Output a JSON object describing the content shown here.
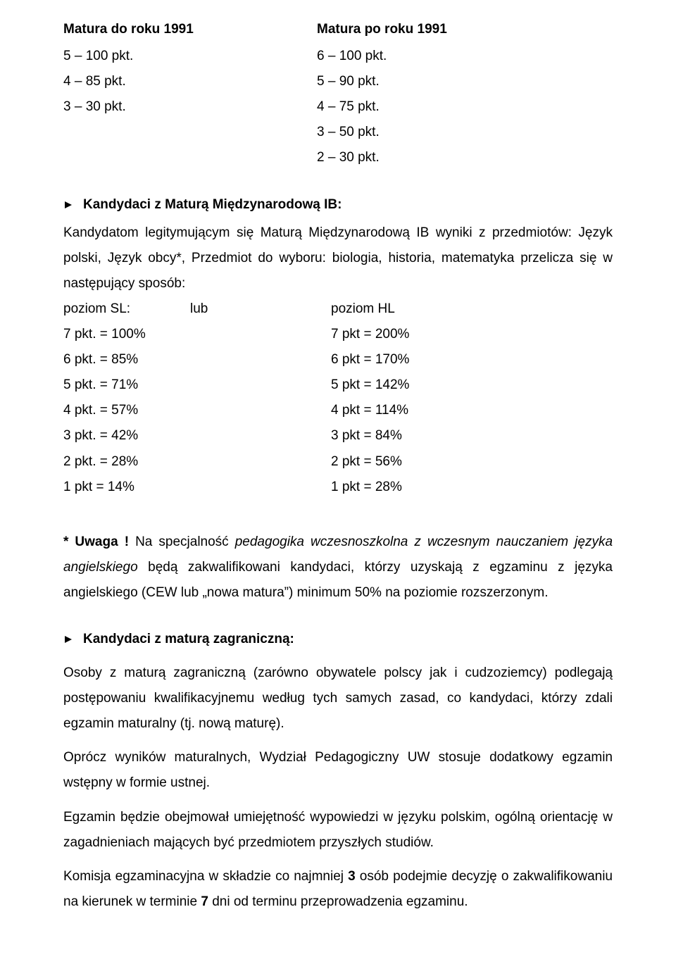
{
  "header": {
    "left_title": "Matura do roku 1991",
    "right_title": "Matura po roku 1991"
  },
  "points_table": {
    "left": [
      "5 – 100 pkt.",
      "4 – 85 pkt.",
      "3 – 30 pkt."
    ],
    "right": [
      "6 – 100 pkt.",
      "5 – 90 pkt.",
      "4 – 75 pkt.",
      "3 – 50 pkt.",
      "2 – 30 pkt."
    ]
  },
  "ib_heading": "Kandydaci z Maturą Międzynarodową IB:",
  "ib_para": "Kandydatom legitymującym się Maturą Międzynarodową IB wyniki  z przedmiotów: Język polski, Język obcy*, Przedmiot do wyboru: biologia, historia, matematyka przelicza się w następujący sposób:",
  "conv": {
    "sl_label": "poziom SL:",
    "lub_label": "lub",
    "hl_label": "poziom HL",
    "rows": [
      {
        "sl": "7 pkt. = 100%",
        "hl": "7 pkt = 200%"
      },
      {
        "sl": "6 pkt. = 85%",
        "hl": "6 pkt = 170%"
      },
      {
        "sl": "5 pkt. = 71%",
        "hl": "5 pkt = 142%"
      },
      {
        "sl": "4 pkt. = 57%",
        "hl": "4 pkt = 114%"
      },
      {
        "sl": "3 pkt. = 42%",
        "hl": "3 pkt =   84%"
      },
      {
        "sl": "2 pkt. = 28%",
        "hl": "2 pkt =   56%"
      },
      {
        "sl": "1 pkt = 14%",
        "hl": "1 pkt =   28%"
      }
    ]
  },
  "uwaga": {
    "prefix_bold": "* Uwaga !",
    "lead": "  Na specjalność ",
    "italic1": "pedagogika wczesnoszkolna z wczesnym nauczaniem języka angielskiego",
    "tail": " będą zakwalifikowani kandydaci, którzy uzyskają z egzaminu z języka angielskiego (CEW lub „nowa matura”) minimum 50% na poziomie rozszerzonym."
  },
  "foreign_heading": "Kandydaci z maturą zagraniczną:",
  "foreign_p1": "Osoby z maturą zagraniczną (zarówno obywatele polscy jak i cudzoziemcy) podlegają postępowaniu kwalifikacyjnemu według tych samych zasad, co kandydaci, którzy zdali egzamin maturalny (tj. nową maturę).",
  "foreign_p2": "Oprócz wyników maturalnych, Wydział Pedagogiczny UW stosuje dodatkowy egzamin wstępny w formie ustnej.",
  "foreign_p3": "Egzamin będzie obejmował umiejętność wypowiedzi w języku polskim, ogólną orientację w zagadnieniach mających być przedmiotem przyszłych studiów.",
  "foreign_p4_a": "Komisja egzaminacyjna w składzie co najmniej ",
  "foreign_p4_bold1": "3",
  "foreign_p4_b": " osób podejmie decyzję o zakwalifikowaniu na kierunek w terminie ",
  "foreign_p4_bold2": "7",
  "foreign_p4_c": " dni od terminu przeprowadzenia egzaminu.",
  "colors": {
    "text": "#000000",
    "background": "#ffffff",
    "arrow": "#000000"
  }
}
